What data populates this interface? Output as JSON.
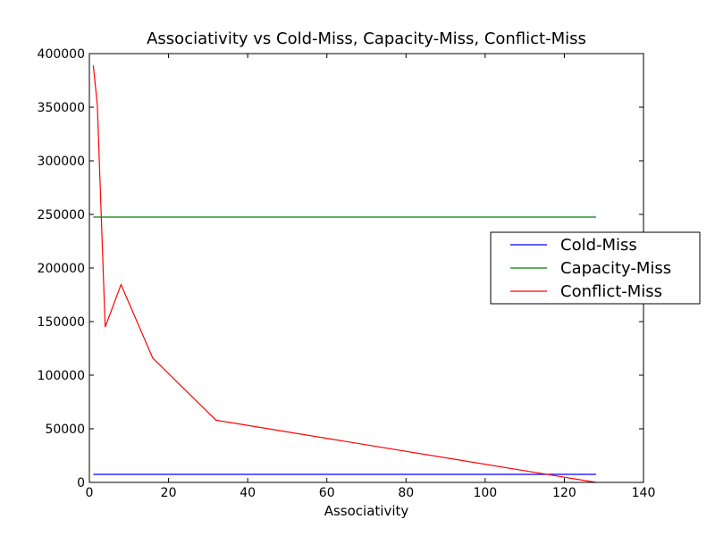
{
  "chart_data": {
    "type": "line",
    "title": "Associativity vs Cold-Miss, Capacity-Miss, Conflict-Miss",
    "xlabel": "Associativity",
    "ylabel": "",
    "xlim": [
      0,
      140
    ],
    "ylim": [
      0,
      400000
    ],
    "xticks": [
      0,
      20,
      40,
      60,
      80,
      100,
      120,
      140
    ],
    "yticks": [
      0,
      50000,
      100000,
      150000,
      200000,
      250000,
      300000,
      350000,
      400000
    ],
    "x_tick_labels": [
      "0",
      "20",
      "40",
      "60",
      "80",
      "100",
      "120",
      "140"
    ],
    "y_tick_labels": [
      "0",
      "50000",
      "100000",
      "150000",
      "200000",
      "250000",
      "300000",
      "350000",
      "400000"
    ],
    "grid": false,
    "legend_position": "right",
    "series": [
      {
        "name": "Cold-Miss",
        "color": "#0000ff",
        "x": [
          1,
          2,
          4,
          8,
          16,
          32,
          128
        ],
        "y": [
          7500,
          7500,
          7500,
          7500,
          7500,
          7500,
          7500
        ]
      },
      {
        "name": "Capacity-Miss",
        "color": "#008000",
        "x": [
          1,
          2,
          4,
          8,
          16,
          32,
          128
        ],
        "y": [
          247500,
          247500,
          247500,
          247500,
          247500,
          247500,
          247500
        ]
      },
      {
        "name": "Conflict-Miss",
        "color": "#ff0000",
        "x": [
          1,
          2,
          4,
          8,
          16,
          32,
          128
        ],
        "y": [
          389000,
          352000,
          145000,
          184500,
          116000,
          58000,
          0
        ]
      }
    ]
  }
}
